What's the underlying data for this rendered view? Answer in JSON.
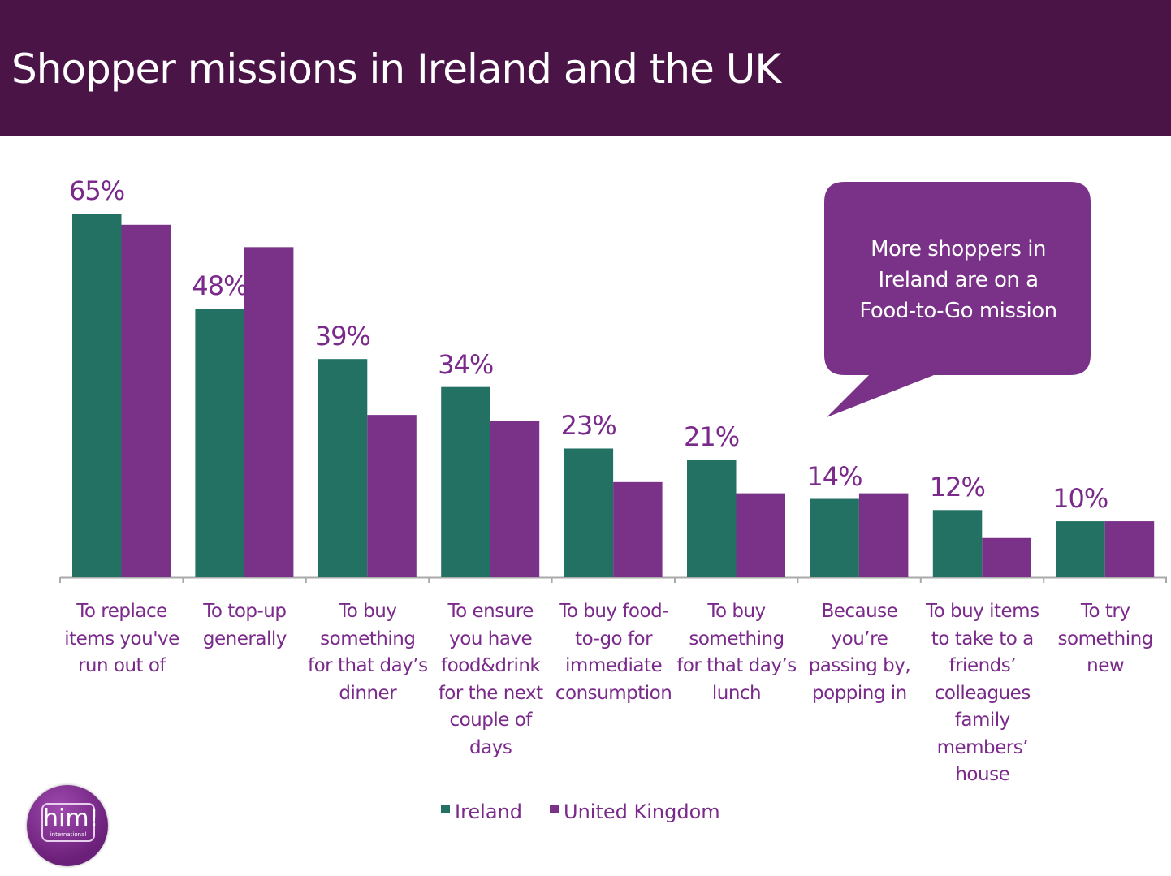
{
  "header": {
    "title": "Shopper missions in Ireland and the UK"
  },
  "callout": {
    "text": "More shoppers in\nIreland are on a\nFood-to-Go mission"
  },
  "logo": {
    "text": "him!",
    "subtext": "international"
  },
  "colors": {
    "ireland": "#237162",
    "uk": "#7a3289",
    "text": "#7a2a8a",
    "header": "#4a1447"
  },
  "chart_data": {
    "type": "bar",
    "title": "Shopper missions in Ireland and the UK",
    "categories": [
      "To replace\nitems you've\nrun out of",
      "To top-up\ngenerally",
      "To buy\nsomething\nfor that day’s\ndinner",
      "To ensure\nyou have\nfood&drink\nfor the next\ncouple of\ndays",
      "To buy food-\nto-go for\nimmediate\nconsumption",
      "To buy\nsomething\nfor that day’s\nlunch",
      "Because\nyou’re\npassing by,\npopping in",
      "To buy items\nto take to a\nfriends’\ncolleagues\nfamily\nmembers’\nhouse",
      "To try\nsomething\nnew"
    ],
    "series": [
      {
        "name": "Ireland",
        "values": [
          65,
          48,
          39,
          34,
          23,
          21,
          14,
          12,
          10
        ],
        "labels": [
          "65%",
          "48%",
          "39%",
          "34%",
          "23%",
          "21%",
          "14%",
          "12%",
          "10%"
        ]
      },
      {
        "name": "United Kingdom",
        "values": [
          63,
          59,
          29,
          28,
          17,
          15,
          15,
          7,
          10
        ]
      }
    ],
    "ylim": [
      0,
      70
    ],
    "legend": "bottom",
    "grid": false
  }
}
